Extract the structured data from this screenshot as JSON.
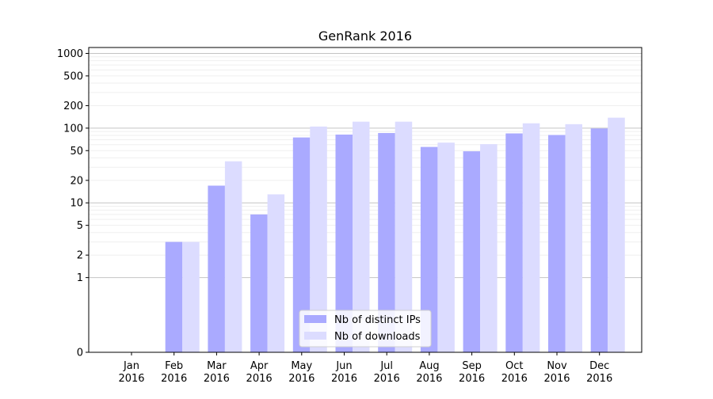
{
  "chart_data": {
    "type": "bar",
    "title": "GenRank 2016",
    "xlabel": "",
    "ylabel": "",
    "y_scale": "symlog",
    "ylim": [
      0,
      1200
    ],
    "y_ticks": [
      {
        "value": 0,
        "label": "0"
      },
      {
        "value": 1,
        "label": "1"
      },
      {
        "value": 2,
        "label": "2"
      },
      {
        "value": 5,
        "label": "5"
      },
      {
        "value": 10,
        "label": "10"
      },
      {
        "value": 20,
        "label": "20"
      },
      {
        "value": 50,
        "label": "50"
      },
      {
        "value": 100,
        "label": "100"
      },
      {
        "value": 200,
        "label": "200"
      },
      {
        "value": 500,
        "label": "500"
      },
      {
        "value": 1000,
        "label": "1000"
      }
    ],
    "categories": [
      {
        "month": "Jan",
        "year": "2016"
      },
      {
        "month": "Feb",
        "year": "2016"
      },
      {
        "month": "Mar",
        "year": "2016"
      },
      {
        "month": "Apr",
        "year": "2016"
      },
      {
        "month": "May",
        "year": "2016"
      },
      {
        "month": "Jun",
        "year": "2016"
      },
      {
        "month": "Jul",
        "year": "2016"
      },
      {
        "month": "Aug",
        "year": "2016"
      },
      {
        "month": "Sep",
        "year": "2016"
      },
      {
        "month": "Oct",
        "year": "2016"
      },
      {
        "month": "Nov",
        "year": "2016"
      },
      {
        "month": "Dec",
        "year": "2016"
      }
    ],
    "series": [
      {
        "name": "Nb of distinct IPs",
        "color": "#aaaaff",
        "values": [
          0,
          3,
          17,
          7,
          75,
          82,
          86,
          56,
          49,
          85,
          81,
          99
        ]
      },
      {
        "name": "Nb of downloads",
        "color": "#dcdcff",
        "values": [
          0,
          3,
          36,
          13,
          105,
          122,
          122,
          64,
          61,
          116,
          113,
          138
        ]
      }
    ],
    "grid": {
      "major_y": true,
      "minor_y": true
    },
    "legend_position": "lower center"
  }
}
